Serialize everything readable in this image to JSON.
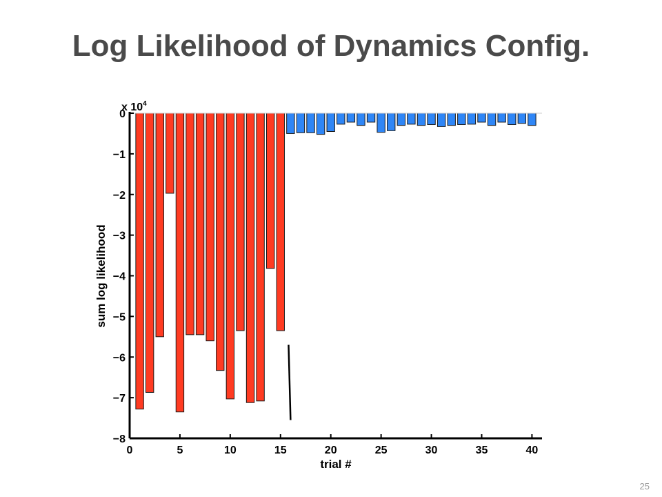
{
  "slide": {
    "title": "Log Likelihood of Dynamics Config.",
    "page_number": "25"
  },
  "chart_data": {
    "type": "bar",
    "title": "",
    "xlabel": "trial #",
    "ylabel": "sum log likelihood",
    "y_multiplier_label": "x 10^4",
    "y_multiplier_base": "x 10",
    "y_multiplier_exp": "4",
    "xlim": [
      0,
      41
    ],
    "ylim": [
      -8,
      0
    ],
    "x_ticks": [
      0,
      5,
      10,
      15,
      20,
      25,
      30,
      35,
      40
    ],
    "y_ticks": [
      0,
      -1,
      -2,
      -3,
      -4,
      -5,
      -6,
      -7,
      -8
    ],
    "y_tick_labels": [
      "0",
      "−1",
      "−2",
      "−3",
      "−4",
      "−5",
      "−6",
      "−7",
      "−8"
    ],
    "grid": false,
    "series": [
      {
        "color": "#ff3b22",
        "x": [
          1,
          2,
          3,
          4,
          5,
          6,
          7,
          8,
          9,
          10,
          11,
          12,
          13,
          14,
          15
        ],
        "values": [
          -7.28,
          -6.87,
          -5.5,
          -1.97,
          -7.35,
          -5.45,
          -5.45,
          -5.6,
          -6.33,
          -7.03,
          -5.35,
          -7.12,
          -7.08,
          -3.82,
          -5.35
        ]
      },
      {
        "color": "#2f86f6",
        "x": [
          16,
          17,
          18,
          19,
          20,
          21,
          22,
          23,
          24,
          25,
          26,
          27,
          28,
          29,
          30,
          31,
          32,
          33,
          34,
          35,
          36,
          37,
          38,
          39,
          40
        ],
        "values": [
          -0.5,
          -0.48,
          -0.48,
          -0.52,
          -0.45,
          -0.27,
          -0.22,
          -0.3,
          -0.22,
          -0.47,
          -0.43,
          -0.3,
          -0.27,
          -0.3,
          -0.28,
          -0.33,
          -0.3,
          -0.28,
          -0.27,
          -0.22,
          -0.3,
          -0.22,
          -0.28,
          -0.25,
          -0.3
        ]
      }
    ],
    "annotation_line": {
      "x": [
        15.8,
        16.0
      ],
      "y": [
        -5.7,
        -7.55
      ]
    }
  }
}
